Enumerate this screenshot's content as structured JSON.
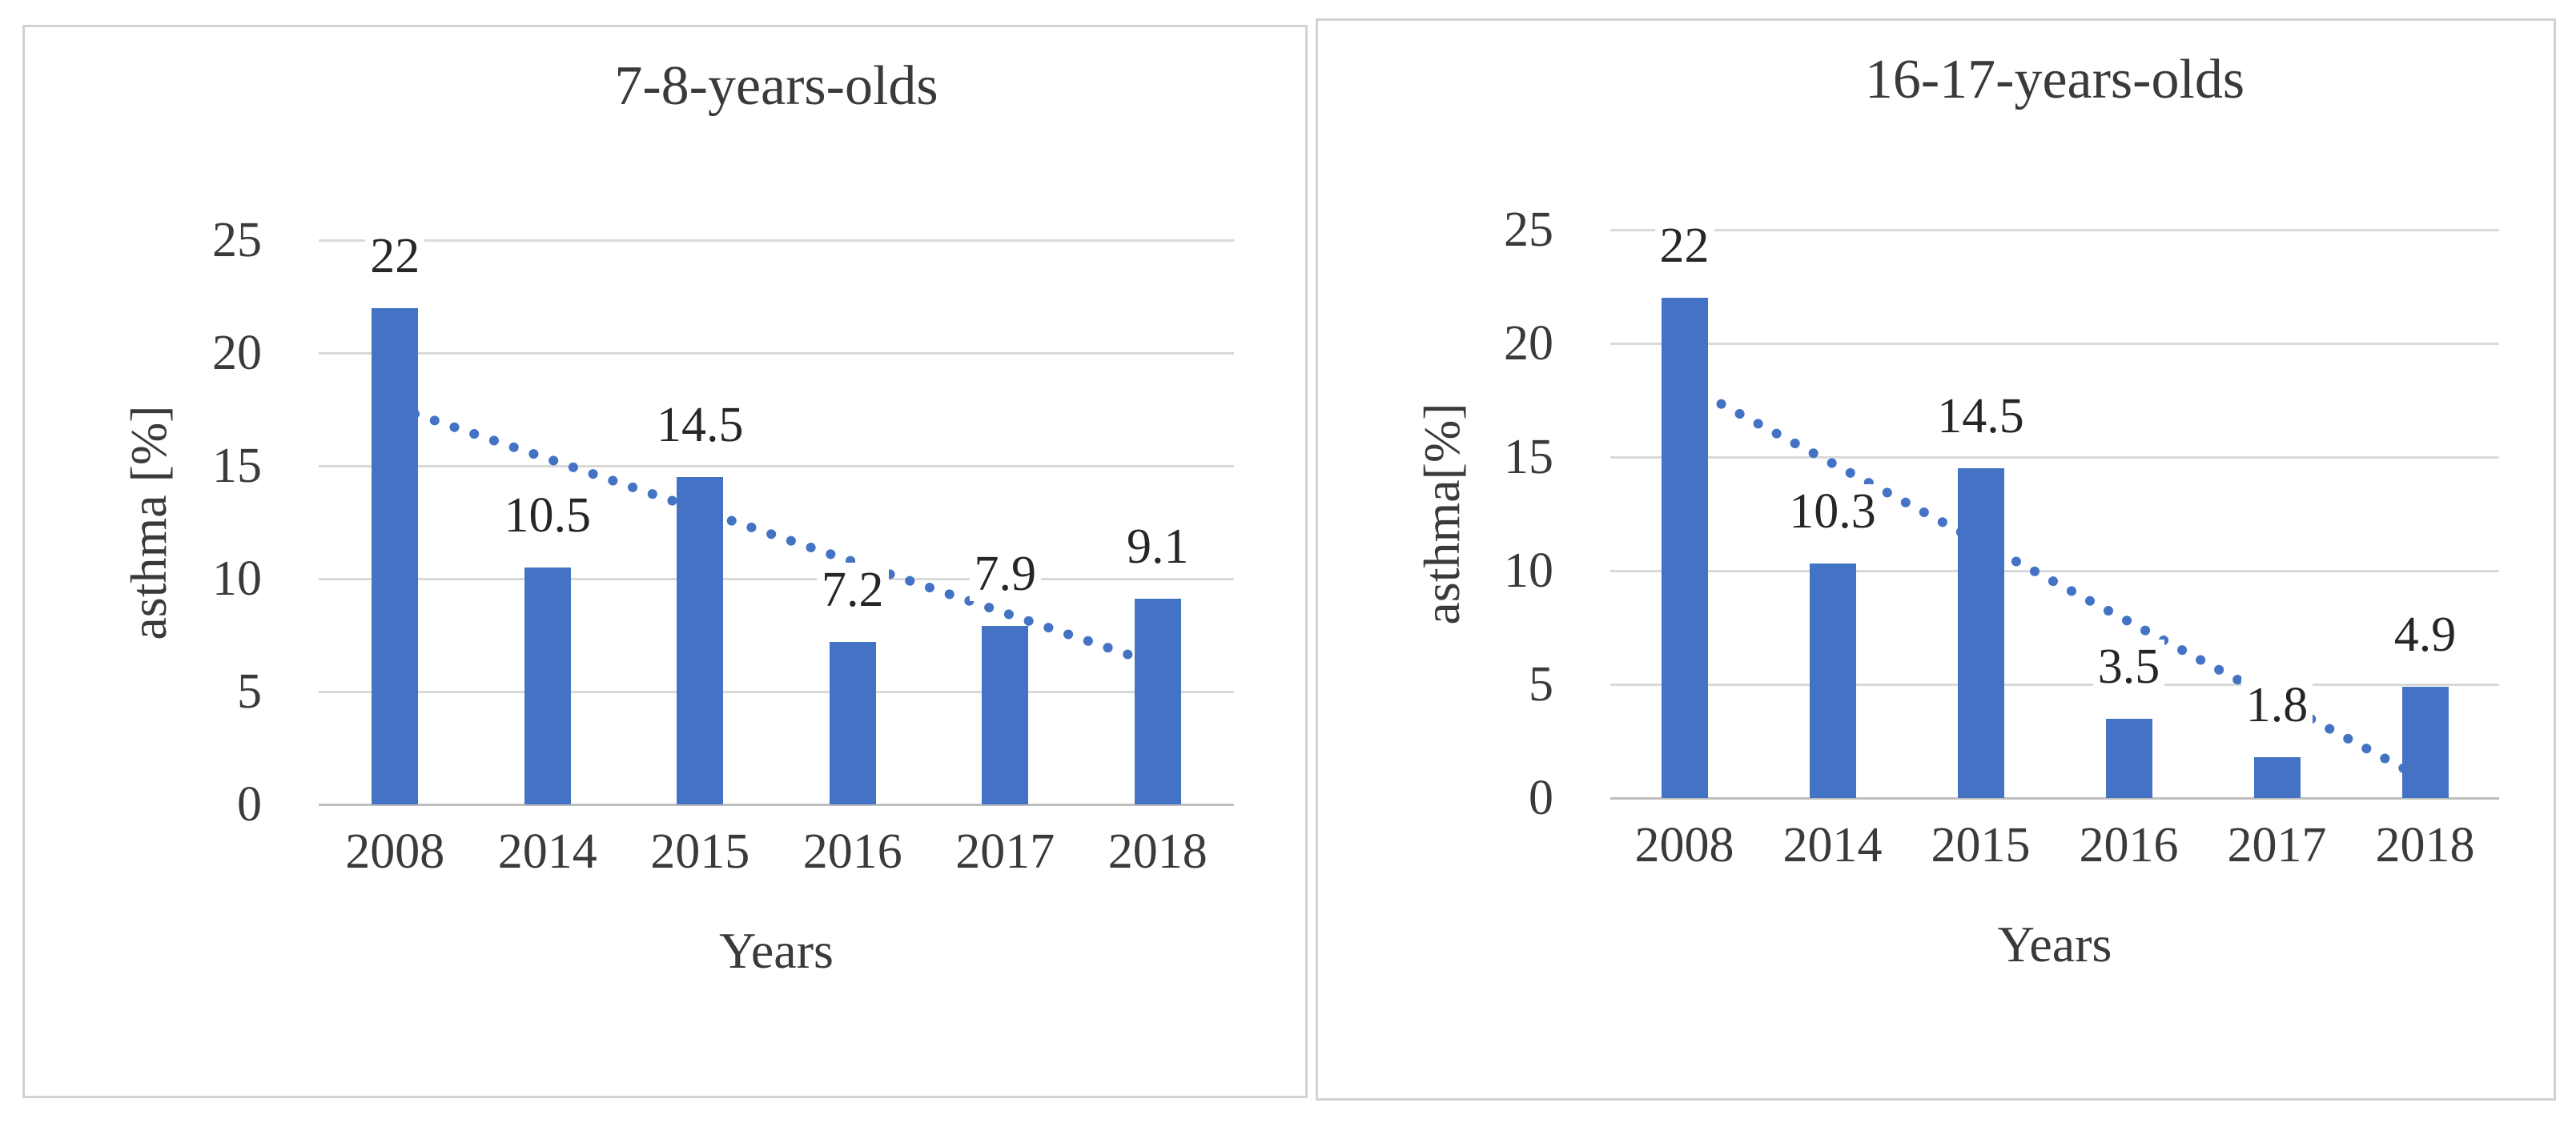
{
  "figure": {
    "description": "Two bar charts of asthma prevalence by survey year with dotted linear trendlines",
    "colors": {
      "bar": "#4472C4",
      "trendline": "#4472C4",
      "gridline": "#D9D9D9",
      "axis_line": "#BFBFBF",
      "text": "#3A3A3A",
      "panel_border": "#D2D2D2",
      "background": "#FFFFFF"
    }
  },
  "chart_data": [
    {
      "type": "bar",
      "title": "7-8-years-olds",
      "categories": [
        "2008",
        "2014",
        "2015",
        "2016",
        "2017",
        "2018"
      ],
      "values": [
        22,
        10.5,
        14.5,
        7.2,
        7.9,
        9.1
      ],
      "data_labels": [
        "22",
        "10.5",
        "14.5",
        "7.2",
        "7.9",
        "9.1"
      ],
      "xlabel": "Years",
      "ylabel": "asthma [%]",
      "ylim": [
        0,
        25
      ],
      "y_ticks": [
        0,
        5,
        10,
        15,
        20,
        25
      ],
      "grid": true,
      "legend": "none",
      "bar_color": "#4472C4",
      "trendline": {
        "type": "linear",
        "style": "dotted",
        "color": "#4472C4",
        "y_start": 17.6,
        "y_end": 6.2
      }
    },
    {
      "type": "bar",
      "title": "16-17-years-olds",
      "categories": [
        "2008",
        "2014",
        "2015",
        "2016",
        "2017",
        "2018"
      ],
      "values": [
        22,
        10.3,
        14.5,
        3.5,
        1.8,
        4.9
      ],
      "data_labels": [
        "22",
        "10.3",
        "14.5",
        "3.5",
        "1.8",
        "4.9"
      ],
      "xlabel": "Years",
      "ylabel": "asthma[%]",
      "ylim": [
        0,
        25
      ],
      "y_ticks": [
        0,
        5,
        10,
        15,
        20,
        25
      ],
      "grid": true,
      "legend": "none",
      "bar_color": "#4472C4",
      "trendline": {
        "type": "linear",
        "style": "dotted",
        "color": "#4472C4",
        "y_start": 18.2,
        "y_end": 0.8
      }
    }
  ]
}
